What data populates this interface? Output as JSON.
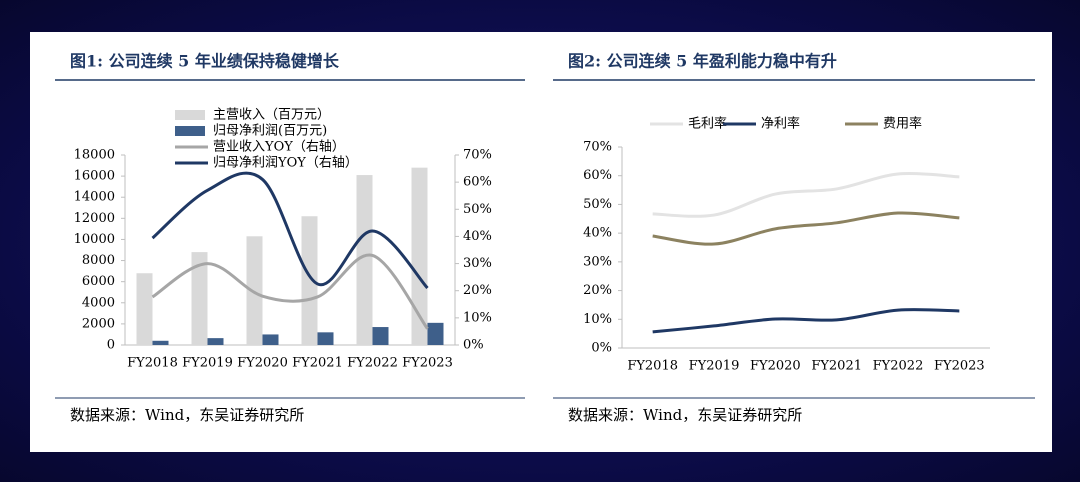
{
  "chart_data": [
    {
      "type": "combo",
      "title": "图1: 公司连续 5 年业绩保持稳健增长",
      "source": "数据来源：Wind，东吴证券研究所",
      "categories": [
        "FY2018",
        "FY2019",
        "FY2020",
        "FY2021",
        "FY2022",
        "FY2023"
      ],
      "series": [
        {
          "name": "主营收入（百万元）",
          "type": "bar",
          "color": "#d9d9d9",
          "values": [
            6800,
            8800,
            10300,
            12200,
            16100,
            16800
          ]
        },
        {
          "name": "归母净利润(百万元)",
          "type": "bar",
          "color": "#3e5f8a",
          "values": [
            400,
            650,
            1000,
            1200,
            1700,
            2100
          ]
        },
        {
          "name": "营业收入YOY（右轴）",
          "type": "line",
          "axis": "y2",
          "color": "#a6a6a6",
          "values": [
            17.7,
            30,
            18,
            17.7,
            33,
            6
          ]
        },
        {
          "name": "归母净利润YOY（右轴）",
          "type": "line",
          "axis": "y2",
          "color": "#1f3864",
          "values": [
            39.4,
            57,
            61,
            22.5,
            42,
            21
          ]
        }
      ],
      "ylim": [
        0,
        18000
      ],
      "yticks": [
        0,
        2000,
        4000,
        6000,
        8000,
        10000,
        12000,
        14000,
        16000,
        18000
      ],
      "y2lim": [
        0,
        70
      ],
      "y2ticks": [
        {
          "value": 0,
          "label": "0%"
        },
        {
          "value": 10,
          "label": "10%"
        },
        {
          "value": 20,
          "label": "20%"
        },
        {
          "value": 30,
          "label": "30%"
        },
        {
          "value": 40,
          "label": "40%"
        },
        {
          "value": 50,
          "label": "50%"
        },
        {
          "value": 60,
          "label": "60%"
        },
        {
          "value": 70,
          "label": "70%"
        }
      ],
      "grid": false,
      "legend": "top"
    },
    {
      "type": "line",
      "title": "图2: 公司连续 5 年盈利能力稳中有升",
      "source": "数据来源：Wind，东吴证券研究所",
      "categories": [
        "FY2018",
        "FY2019",
        "FY2020",
        "FY2021",
        "FY2022",
        "FY2023"
      ],
      "series": [
        {
          "name": "毛利率",
          "color": "#e3e3e3",
          "values": [
            46.7,
            46.3,
            53.6,
            55.4,
            60.6,
            59.6
          ]
        },
        {
          "name": "净利率",
          "color": "#1f3864",
          "values": [
            5.6,
            7.7,
            10.1,
            9.8,
            13.2,
            12.9
          ]
        },
        {
          "name": "费用率",
          "color": "#8c8260",
          "values": [
            39,
            36.2,
            41.5,
            43.6,
            47,
            45.3
          ]
        }
      ],
      "ylim": [
        0,
        70
      ],
      "yticks": [
        {
          "value": 0,
          "label": "0%"
        },
        {
          "value": 10,
          "label": "10%"
        },
        {
          "value": 20,
          "label": "20%"
        },
        {
          "value": 30,
          "label": "30%"
        },
        {
          "value": 40,
          "label": "40%"
        },
        {
          "value": 50,
          "label": "50%"
        },
        {
          "value": 60,
          "label": "60%"
        },
        {
          "value": 70,
          "label": "70%"
        }
      ],
      "grid": false,
      "legend": "top"
    }
  ]
}
